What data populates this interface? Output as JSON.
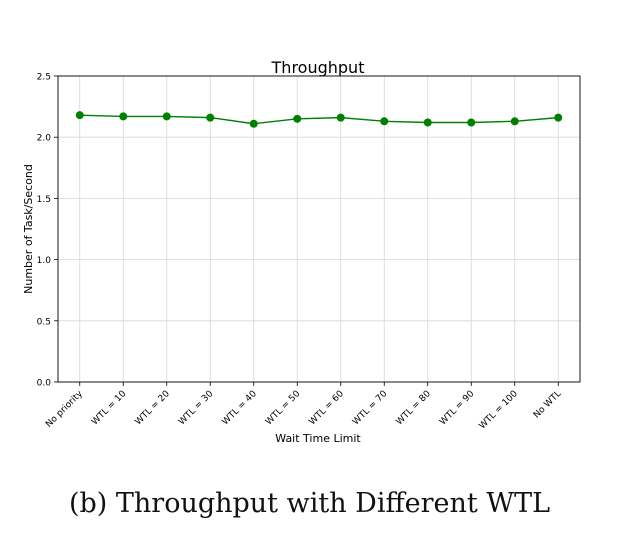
{
  "chart_data": {
    "type": "line",
    "title": "Throughput",
    "xlabel": "Wait Time Limit",
    "ylabel": "Number of Task/Second",
    "categories": [
      "No priority",
      "WTL = 10",
      "WTL = 20",
      "WTL = 30",
      "WTL = 40",
      "WTL = 50",
      "WTL = 60",
      "WTL = 70",
      "WTL = 80",
      "WTL = 90",
      "WTL = 100",
      "No WTL"
    ],
    "series": [
      {
        "values": [
          2.18,
          2.17,
          2.17,
          2.16,
          2.11,
          2.15,
          2.16,
          2.13,
          2.12,
          2.12,
          2.13,
          2.16
        ],
        "color": "#008000"
      }
    ],
    "ylim": [
      0.0,
      2.5
    ],
    "yticks": [
      0.0,
      0.5,
      1.0,
      1.5,
      2.0,
      2.5
    ],
    "ytick_labels": [
      "0.0",
      "0.5",
      "1.0",
      "1.5",
      "2.0",
      "2.5"
    ],
    "grid": true,
    "legend": false
  },
  "caption": "(b) Throughput with Different WTL"
}
